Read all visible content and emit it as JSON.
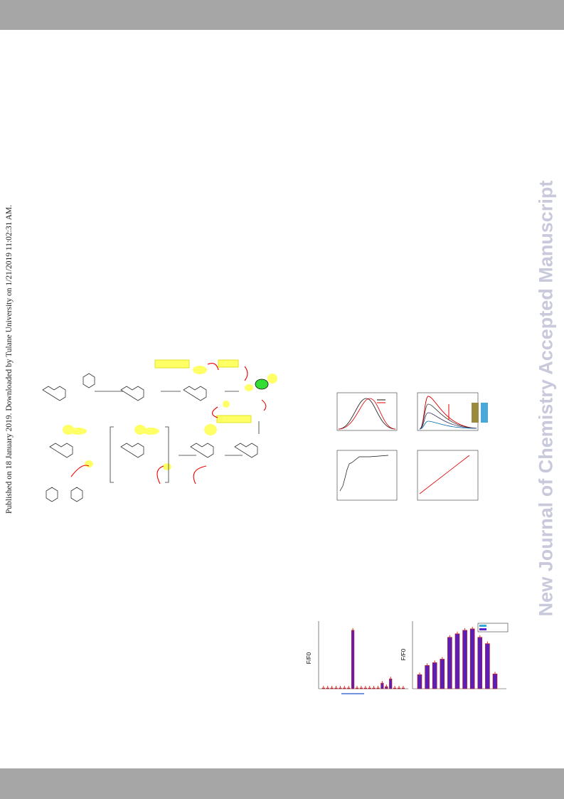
{
  "watermark_left": "Published on 18 January 2019. Downloaded by Tulane University on 1/21/2019 11:02:31 AM.",
  "watermark_right": "New Journal of Chemistry Accepted Manuscript",
  "figure_bars": {
    "y_label": "F/F0",
    "left": [
      1,
      1,
      1,
      1,
      1,
      1,
      1,
      83,
      1,
      1,
      1,
      1,
      1,
      1,
      8,
      3,
      14,
      1,
      1,
      1
    ],
    "right": [
      20,
      33,
      37,
      42,
      73,
      78,
      83,
      85,
      73,
      64,
      21
    ]
  }
}
